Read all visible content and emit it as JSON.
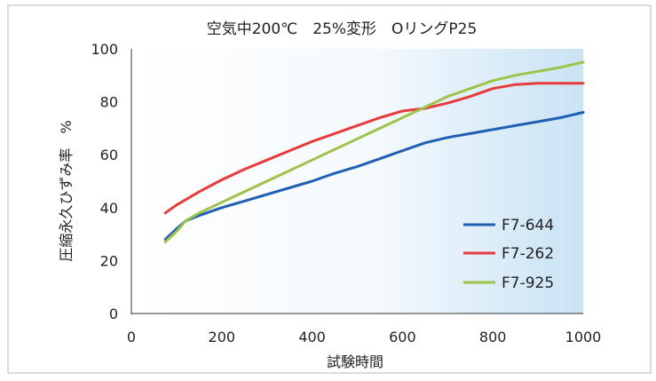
{
  "chart_data": {
    "type": "line",
    "title": "空気中200℃　25%変形　OリングP25",
    "xlabel": "試験時間",
    "ylabel": "圧縮永久ひずみ率　%",
    "xlim": [
      0,
      1000
    ],
    "ylim": [
      0,
      100
    ],
    "x_ticks": [
      "0",
      "200",
      "400",
      "600",
      "800",
      "1000"
    ],
    "y_ticks": [
      "0",
      "20",
      "40",
      "60",
      "80",
      "100"
    ],
    "grid": false,
    "legend_position": "bottom-right",
    "series": [
      {
        "name": "F7-644",
        "color": "#1f5fb4",
        "points": [
          [
            75,
            28
          ],
          [
            100,
            32
          ],
          [
            120,
            35
          ],
          [
            150,
            37
          ],
          [
            200,
            40
          ],
          [
            250,
            42.5
          ],
          [
            300,
            45
          ],
          [
            350,
            47.5
          ],
          [
            400,
            50
          ],
          [
            450,
            53
          ],
          [
            500,
            55.5
          ],
          [
            550,
            58.5
          ],
          [
            600,
            61.5
          ],
          [
            650,
            64.5
          ],
          [
            700,
            66.5
          ],
          [
            750,
            68
          ],
          [
            800,
            69.5
          ],
          [
            850,
            71
          ],
          [
            900,
            72.5
          ],
          [
            950,
            74
          ],
          [
            1000,
            76
          ]
        ]
      },
      {
        "name": "F7-262",
        "color": "#e83c3c",
        "points": [
          [
            75,
            38
          ],
          [
            100,
            41
          ],
          [
            150,
            46
          ],
          [
            200,
            50.5
          ],
          [
            250,
            54.5
          ],
          [
            300,
            58
          ],
          [
            350,
            61.5
          ],
          [
            400,
            65
          ],
          [
            450,
            68
          ],
          [
            500,
            71
          ],
          [
            550,
            74
          ],
          [
            600,
            76.5
          ],
          [
            625,
            77
          ],
          [
            650,
            77.5
          ],
          [
            700,
            79.5
          ],
          [
            750,
            82
          ],
          [
            800,
            85
          ],
          [
            850,
            86.5
          ],
          [
            900,
            87
          ],
          [
            950,
            87
          ],
          [
            1000,
            87
          ]
        ]
      },
      {
        "name": "F7-925",
        "color": "#9dc349",
        "points": [
          [
            75,
            27
          ],
          [
            100,
            31
          ],
          [
            120,
            35
          ],
          [
            150,
            38
          ],
          [
            200,
            42
          ],
          [
            250,
            46
          ],
          [
            300,
            50
          ],
          [
            350,
            54
          ],
          [
            400,
            58
          ],
          [
            450,
            62
          ],
          [
            500,
            66
          ],
          [
            550,
            70
          ],
          [
            600,
            74
          ],
          [
            650,
            78
          ],
          [
            700,
            82
          ],
          [
            750,
            85
          ],
          [
            800,
            88
          ],
          [
            850,
            90
          ],
          [
            900,
            91.5
          ],
          [
            950,
            93
          ],
          [
            1000,
            95
          ]
        ]
      }
    ]
  }
}
